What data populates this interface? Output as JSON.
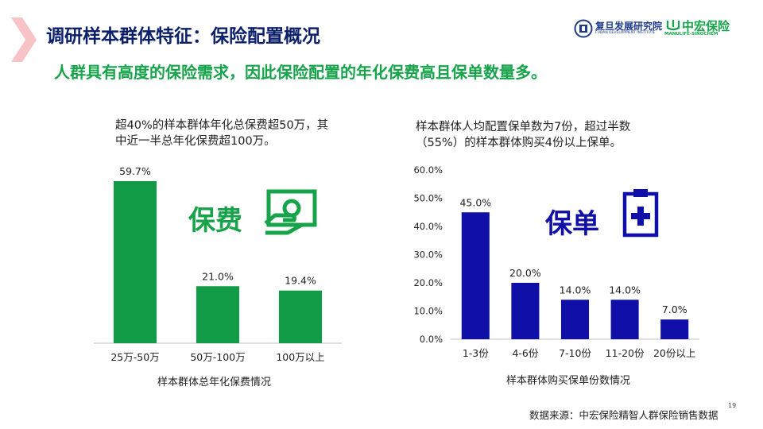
{
  "header": {
    "title": "调研样本群体特征：保险配置概况",
    "subtitle": "人群具有高度的保险需求，因此保险配置的年化保费高且保单数量多。"
  },
  "logos": {
    "fudan_name": "复旦发展研究院",
    "fudan_en": "FUDAN DEVELOPMENT INSTITUTE",
    "mh_name": "中宏保险",
    "mh_en": "MANULIFE-SINOCHEM"
  },
  "left_panel": {
    "desc_line1": "超40%的样本群体年化总保费超50万，其",
    "desc_line2": "中近一半总年化保费超100万。",
    "icon_label": "保费",
    "icon_name": "payment-icon"
  },
  "right_panel": {
    "desc_line1": "样本群体人均配置保单数为7份，超过半数",
    "desc_line2": "（55%）的样本群体购买4份以上保单。",
    "icon_label": "保单",
    "icon_name": "clipboard-medical-icon"
  },
  "chart_data": [
    {
      "type": "bar",
      "categories": [
        "25万-50万",
        "50万-100万",
        "100万以上"
      ],
      "values": [
        59.7,
        21.0,
        19.4
      ],
      "value_labels": [
        "59.7%",
        "21.0%",
        "19.4%"
      ],
      "title": "",
      "xlabel": "样本群体总年化保费情况",
      "ylabel": "",
      "ylim": [
        0,
        60
      ],
      "show_y_axis": false,
      "grid": false,
      "color": "#129b47"
    },
    {
      "type": "bar",
      "categories": [
        "1-3份",
        "4-6份",
        "7-10份",
        "11-20份",
        "20份以上"
      ],
      "values": [
        45.0,
        20.0,
        14.0,
        14.0,
        7.0
      ],
      "value_labels": [
        "45.0%",
        "20.0%",
        "14.0%",
        "14.0%",
        "7.0%"
      ],
      "title": "",
      "xlabel": "样本群体购买保单份数情况",
      "ylabel": "",
      "ylim": [
        0,
        60
      ],
      "yticks": [
        "0.0%",
        "10.0%",
        "20.0%",
        "30.0%",
        "40.0%",
        "50.0%",
        "60.0%"
      ],
      "show_y_axis": true,
      "grid": false,
      "color": "#1010a8"
    }
  ],
  "footer": {
    "source": "数据来源：中宏保险精智人群保险销售数据",
    "page_number": "19"
  }
}
